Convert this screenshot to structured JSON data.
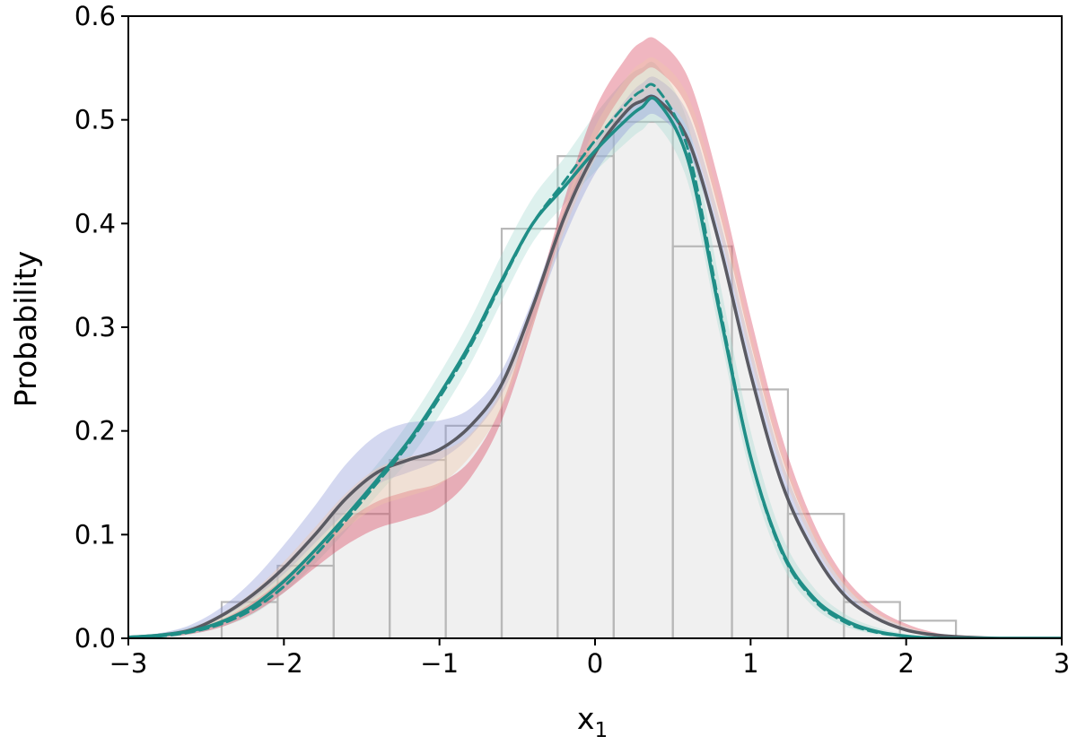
{
  "chart_data": {
    "type": "line",
    "xlabel": "x",
    "xlabel_sub": "1",
    "ylabel": "Probability",
    "xlim": [
      -3,
      3
    ],
    "ylim": [
      0,
      0.6
    ],
    "x_ticks": [
      -3,
      -2,
      -1,
      0,
      1,
      2,
      3
    ],
    "y_ticks": [
      0.0,
      0.1,
      0.2,
      0.3,
      0.4,
      0.5,
      0.6
    ],
    "x_tick_labels": [
      "−3",
      "−2",
      "−1",
      "0",
      "1",
      "2",
      "3"
    ],
    "y_tick_labels": [
      "0.0",
      "0.1",
      "0.2",
      "0.3",
      "0.4",
      "0.5",
      "0.6"
    ],
    "grid": false,
    "legend": "none",
    "colors": {
      "histogram_fill": "#f0f0f0",
      "histogram_edge": "#b8b8b8",
      "dark_line": "#5a5a62",
      "teal": "#1f8e87",
      "teal_band": "#a8d9d1",
      "blue_band": "#8f98d8",
      "red_band": "#d8405a",
      "peach_band": "#f0c6a8"
    },
    "histogram": {
      "edges": [
        -2.4,
        -2.04,
        -1.68,
        -1.32,
        -0.96,
        -0.6,
        -0.24,
        0.12,
        0.5,
        0.88,
        1.24,
        1.6,
        1.96,
        2.32
      ],
      "values": [
        0.035,
        0.07,
        0.12,
        0.172,
        0.205,
        0.395,
        0.465,
        0.498,
        0.378,
        0.24,
        0.12,
        0.035,
        0.017
      ]
    },
    "x": [
      -3.0,
      -2.8,
      -2.6,
      -2.4,
      -2.2,
      -2.0,
      -1.8,
      -1.6,
      -1.4,
      -1.2,
      -1.0,
      -0.8,
      -0.6,
      -0.4,
      -0.2,
      0.0,
      0.2,
      0.3,
      0.4,
      0.6,
      0.8,
      1.0,
      1.2,
      1.4,
      1.6,
      1.8,
      2.0,
      2.2,
      2.4,
      2.6,
      2.8,
      3.0
    ],
    "series": [
      {
        "role": "model-mean",
        "style": "solid",
        "color": "#5a5a62",
        "values": [
          0.001,
          0.003,
          0.008,
          0.022,
          0.042,
          0.068,
          0.1,
          0.135,
          0.16,
          0.172,
          0.182,
          0.205,
          0.245,
          0.32,
          0.405,
          0.468,
          0.508,
          0.518,
          0.52,
          0.48,
          0.38,
          0.255,
          0.15,
          0.085,
          0.042,
          0.02,
          0.008,
          0.003,
          0.001,
          0.0,
          0.0,
          0.0
        ]
      },
      {
        "role": "reference",
        "style": "solid",
        "color": "#1f8e87",
        "values": [
          0.001,
          0.003,
          0.007,
          0.016,
          0.031,
          0.055,
          0.085,
          0.118,
          0.153,
          0.19,
          0.235,
          0.285,
          0.345,
          0.4,
          0.435,
          0.47,
          0.5,
          0.512,
          0.518,
          0.46,
          0.315,
          0.175,
          0.085,
          0.04,
          0.018,
          0.007,
          0.002,
          0.0,
          0.0,
          0.0,
          0.0,
          0.0
        ]
      },
      {
        "role": "reference-dashed",
        "style": "dashed",
        "color": "#1f8e87",
        "values": [
          0.001,
          0.002,
          0.006,
          0.014,
          0.028,
          0.05,
          0.08,
          0.114,
          0.15,
          0.187,
          0.232,
          0.282,
          0.343,
          0.4,
          0.44,
          0.48,
          0.515,
          0.528,
          0.53,
          0.47,
          0.32,
          0.175,
          0.083,
          0.038,
          0.016,
          0.006,
          0.002,
          0.0,
          0.0,
          0.0,
          0.0,
          0.0
        ]
      }
    ],
    "bands": [
      {
        "role": "teal-band",
        "color": "#a8d9d1",
        "lower": [
          0.0,
          0.002,
          0.004,
          0.011,
          0.023,
          0.044,
          0.072,
          0.104,
          0.138,
          0.172,
          0.215,
          0.265,
          0.325,
          0.382,
          0.418,
          0.45,
          0.478,
          0.49,
          0.495,
          0.438,
          0.295,
          0.158,
          0.072,
          0.031,
          0.012,
          0.004,
          0.001,
          0.0,
          0.0,
          0.0,
          0.0,
          0.0
        ],
        "upper": [
          0.002,
          0.005,
          0.011,
          0.022,
          0.04,
          0.067,
          0.1,
          0.133,
          0.168,
          0.208,
          0.255,
          0.308,
          0.37,
          0.425,
          0.463,
          0.505,
          0.54,
          0.55,
          0.552,
          0.495,
          0.345,
          0.2,
          0.1,
          0.05,
          0.024,
          0.011,
          0.004,
          0.001,
          0.0,
          0.0,
          0.0,
          0.0
        ]
      },
      {
        "role": "blue-band",
        "color": "#8f98d8",
        "lower": [
          0.001,
          0.003,
          0.008,
          0.02,
          0.038,
          0.062,
          0.092,
          0.122,
          0.148,
          0.16,
          0.172,
          0.195,
          0.235,
          0.305,
          0.385,
          0.448,
          0.488,
          0.5,
          0.504,
          0.47,
          0.375,
          0.255,
          0.152,
          0.086,
          0.043,
          0.02,
          0.008,
          0.003,
          0.001,
          0.0,
          0.0,
          0.0
        ],
        "upper": [
          0.002,
          0.005,
          0.013,
          0.03,
          0.056,
          0.09,
          0.128,
          0.168,
          0.196,
          0.208,
          0.21,
          0.222,
          0.258,
          0.328,
          0.412,
          0.478,
          0.52,
          0.535,
          0.54,
          0.505,
          0.405,
          0.282,
          0.172,
          0.1,
          0.052,
          0.025,
          0.011,
          0.004,
          0.001,
          0.0,
          0.0,
          0.0
        ]
      },
      {
        "role": "red-band",
        "color": "#d8405a",
        "lower": [
          0.0,
          0.001,
          0.004,
          0.011,
          0.024,
          0.044,
          0.068,
          0.09,
          0.106,
          0.115,
          0.126,
          0.155,
          0.21,
          0.3,
          0.4,
          0.48,
          0.53,
          0.545,
          0.548,
          0.51,
          0.41,
          0.285,
          0.175,
          0.1,
          0.052,
          0.025,
          0.011,
          0.004,
          0.001,
          0.0,
          0.0,
          0.0
        ],
        "upper": [
          0.001,
          0.003,
          0.008,
          0.018,
          0.035,
          0.058,
          0.086,
          0.113,
          0.132,
          0.142,
          0.15,
          0.172,
          0.225,
          0.318,
          0.422,
          0.51,
          0.56,
          0.575,
          0.577,
          0.54,
          0.438,
          0.31,
          0.195,
          0.113,
          0.06,
          0.03,
          0.014,
          0.005,
          0.002,
          0.0,
          0.0,
          0.0
        ]
      },
      {
        "role": "peach-band",
        "color": "#f0c6a8",
        "lower": [
          0.001,
          0.002,
          0.006,
          0.016,
          0.031,
          0.053,
          0.08,
          0.106,
          0.127,
          0.137,
          0.148,
          0.176,
          0.222,
          0.302,
          0.392,
          0.462,
          0.508,
          0.52,
          0.523,
          0.49,
          0.392,
          0.27,
          0.163,
          0.093,
          0.047,
          0.022,
          0.009,
          0.003,
          0.001,
          0.0,
          0.0,
          0.0
        ],
        "upper": [
          0.002,
          0.004,
          0.01,
          0.024,
          0.045,
          0.074,
          0.107,
          0.14,
          0.164,
          0.175,
          0.18,
          0.197,
          0.24,
          0.322,
          0.415,
          0.493,
          0.54,
          0.555,
          0.558,
          0.522,
          0.422,
          0.296,
          0.183,
          0.106,
          0.055,
          0.027,
          0.012,
          0.004,
          0.001,
          0.0,
          0.0,
          0.0
        ]
      }
    ]
  }
}
